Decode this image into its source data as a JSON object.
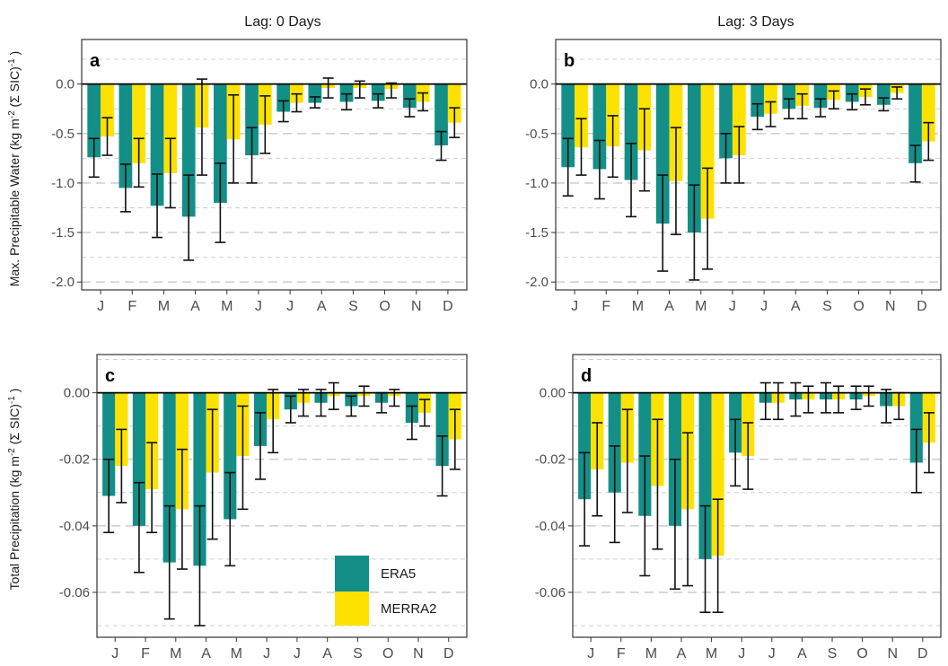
{
  "colors": {
    "era5": "#138f87",
    "merra2": "#fde200",
    "grid": "#d0d0d0",
    "frame": "#333333"
  },
  "strip_titles": {
    "left": "Lag: 0 Days",
    "right": "Lag: 3 Days"
  },
  "y_labels": {
    "top": "Max. Precipitable Water (kg m^-2 (Σ SIC)^-1 )",
    "bottom": "Total Precipitation (kg m^-2 (Σ SIC)^-1 )"
  },
  "legend": {
    "items": [
      {
        "name": "ERA5",
        "color": "#138f87"
      },
      {
        "name": "MERRA2",
        "color": "#fde200"
      }
    ]
  },
  "chart_data": [
    {
      "panel": "a",
      "type": "bar",
      "lag_label": "Lag: 0 Days",
      "categories": [
        "J",
        "F",
        "M",
        "A",
        "M",
        "J",
        "J",
        "A",
        "S",
        "O",
        "N",
        "D"
      ],
      "ylim": [
        -2.08,
        0.45
      ],
      "yticks": [
        0.0,
        -0.5,
        -1.0,
        -1.5,
        -2.0
      ],
      "ytick_labels": [
        "0.0",
        "-0.5",
        "-1.0",
        "-1.5",
        "-2.0"
      ],
      "minor_grid": [
        0.25,
        -0.25,
        -0.75,
        -1.25,
        -1.75
      ],
      "series": [
        {
          "name": "ERA5",
          "values": [
            -0.74,
            -1.05,
            -1.23,
            -1.34,
            -1.2,
            -0.72,
            -0.28,
            -0.19,
            -0.18,
            -0.17,
            -0.24,
            -0.62
          ],
          "err_low": [
            -0.94,
            -1.29,
            -1.55,
            -1.78,
            -1.6,
            -1.0,
            -0.38,
            -0.24,
            -0.26,
            -0.24,
            -0.33,
            -0.77
          ],
          "err_high": [
            -0.55,
            -0.81,
            -0.91,
            -0.92,
            -0.8,
            -0.44,
            -0.17,
            -0.13,
            -0.1,
            -0.1,
            -0.15,
            -0.48
          ]
        },
        {
          "name": "MERRA2",
          "values": [
            -0.53,
            -0.8,
            -0.9,
            -0.44,
            -0.56,
            -0.41,
            -0.19,
            -0.04,
            -0.04,
            -0.05,
            -0.18,
            -0.39
          ],
          "err_low": [
            -0.72,
            -1.04,
            -1.25,
            -0.92,
            -1.0,
            -0.7,
            -0.28,
            -0.14,
            -0.14,
            -0.14,
            -0.27,
            -0.54
          ],
          "err_high": [
            -0.34,
            -0.55,
            -0.55,
            0.05,
            -0.11,
            -0.12,
            -0.1,
            0.06,
            0.03,
            0.01,
            -0.09,
            -0.24
          ]
        }
      ]
    },
    {
      "panel": "b",
      "type": "bar",
      "lag_label": "Lag: 3 Days",
      "categories": [
        "J",
        "F",
        "M",
        "A",
        "M",
        "J",
        "J",
        "A",
        "S",
        "O",
        "N",
        "D"
      ],
      "ylim": [
        -2.08,
        0.45
      ],
      "yticks": [
        0.0,
        -0.5,
        -1.0,
        -1.5,
        -2.0
      ],
      "ytick_labels": [
        "0.0",
        "-0.5",
        "-1.0",
        "-1.5",
        "-2.0"
      ],
      "minor_grid": [
        0.25,
        -0.25,
        -0.75,
        -1.25,
        -1.75
      ],
      "series": [
        {
          "name": "ERA5",
          "values": [
            -0.84,
            -0.86,
            -0.97,
            -1.41,
            -1.5,
            -0.75,
            -0.33,
            -0.25,
            -0.24,
            -0.18,
            -0.21,
            -0.8
          ],
          "err_low": [
            -1.13,
            -1.16,
            -1.34,
            -1.89,
            -1.98,
            -1.0,
            -0.46,
            -0.35,
            -0.33,
            -0.26,
            -0.27,
            -0.99
          ],
          "err_high": [
            -0.55,
            -0.57,
            -0.6,
            -0.92,
            -1.02,
            -0.5,
            -0.2,
            -0.15,
            -0.15,
            -0.1,
            -0.14,
            -0.62
          ]
        },
        {
          "name": "MERRA2",
          "values": [
            -0.64,
            -0.63,
            -0.67,
            -0.98,
            -1.36,
            -0.72,
            -0.3,
            -0.22,
            -0.16,
            -0.13,
            -0.09,
            -0.58
          ],
          "err_low": [
            -0.92,
            -0.94,
            -1.08,
            -1.52,
            -1.87,
            -1.0,
            -0.43,
            -0.35,
            -0.25,
            -0.21,
            -0.15,
            -0.77
          ],
          "err_high": [
            -0.35,
            -0.32,
            -0.25,
            -0.44,
            -0.85,
            -0.43,
            -0.18,
            -0.1,
            -0.07,
            -0.05,
            -0.03,
            -0.39
          ]
        }
      ]
    },
    {
      "panel": "c",
      "type": "bar",
      "lag_label": "Lag: 0 Days",
      "categories": [
        "J",
        "F",
        "M",
        "A",
        "M",
        "J",
        "J",
        "A",
        "S",
        "O",
        "N",
        "D"
      ],
      "ylim": [
        -0.0735,
        0.0115
      ],
      "yticks": [
        0.0,
        -0.02,
        -0.04,
        -0.06
      ],
      "ytick_labels": [
        "0.00",
        "-0.02",
        "-0.04",
        "-0.06"
      ],
      "minor_grid": [
        0.01,
        -0.01,
        -0.03,
        -0.05,
        -0.07
      ],
      "series": [
        {
          "name": "ERA5",
          "values": [
            -0.031,
            -0.04,
            -0.051,
            -0.052,
            -0.038,
            -0.016,
            -0.005,
            -0.003,
            -0.004,
            -0.003,
            -0.009,
            -0.022
          ],
          "err_low": [
            -0.042,
            -0.054,
            -0.068,
            -0.07,
            -0.052,
            -0.026,
            -0.009,
            -0.007,
            -0.007,
            -0.006,
            -0.014,
            -0.031
          ],
          "err_high": [
            -0.02,
            -0.027,
            -0.034,
            -0.034,
            -0.024,
            -0.006,
            -0.001,
            0.001,
            -0.001,
            0.0,
            -0.004,
            -0.013
          ]
        },
        {
          "name": "MERRA2",
          "values": [
            -0.022,
            -0.029,
            -0.035,
            -0.024,
            -0.019,
            -0.008,
            -0.003,
            -0.001,
            -0.001,
            -0.001,
            -0.006,
            -0.014
          ],
          "err_low": [
            -0.033,
            -0.042,
            -0.053,
            -0.044,
            -0.035,
            -0.018,
            -0.007,
            -0.005,
            -0.004,
            -0.004,
            -0.01,
            -0.023
          ],
          "err_high": [
            -0.011,
            -0.015,
            -0.017,
            -0.005,
            -0.004,
            0.001,
            0.001,
            0.003,
            0.002,
            0.001,
            -0.002,
            -0.005
          ]
        }
      ]
    },
    {
      "panel": "d",
      "type": "bar",
      "lag_label": "Lag: 3 Days",
      "categories": [
        "J",
        "F",
        "M",
        "A",
        "M",
        "J",
        "J",
        "A",
        "S",
        "O",
        "N",
        "D"
      ],
      "ylim": [
        -0.0735,
        0.0115
      ],
      "yticks": [
        0.0,
        -0.02,
        -0.04,
        -0.06
      ],
      "ytick_labels": [
        "0.00",
        "-0.02",
        "-0.04",
        "-0.06"
      ],
      "minor_grid": [
        0.01,
        -0.01,
        -0.03,
        -0.05,
        -0.07
      ],
      "series": [
        {
          "name": "ERA5",
          "values": [
            -0.032,
            -0.03,
            -0.037,
            -0.04,
            -0.05,
            -0.018,
            -0.003,
            -0.002,
            -0.002,
            -0.002,
            -0.004,
            -0.021
          ],
          "err_low": [
            -0.046,
            -0.045,
            -0.055,
            -0.059,
            -0.066,
            -0.028,
            -0.008,
            -0.007,
            -0.006,
            -0.005,
            -0.009,
            -0.03
          ],
          "err_high": [
            -0.018,
            -0.016,
            -0.019,
            -0.02,
            -0.034,
            -0.008,
            0.003,
            0.003,
            0.003,
            0.002,
            0.001,
            -0.011
          ]
        },
        {
          "name": "MERRA2",
          "values": [
            -0.023,
            -0.021,
            -0.028,
            -0.035,
            -0.049,
            -0.019,
            -0.003,
            -0.002,
            -0.002,
            -0.001,
            -0.004,
            -0.015
          ],
          "err_low": [
            -0.037,
            -0.036,
            -0.047,
            -0.058,
            -0.066,
            -0.029,
            -0.008,
            -0.006,
            -0.006,
            -0.004,
            -0.008,
            -0.024
          ],
          "err_high": [
            -0.009,
            -0.005,
            -0.008,
            -0.012,
            -0.032,
            -0.009,
            0.003,
            0.002,
            0.002,
            0.002,
            0.0,
            -0.006
          ]
        }
      ]
    }
  ]
}
